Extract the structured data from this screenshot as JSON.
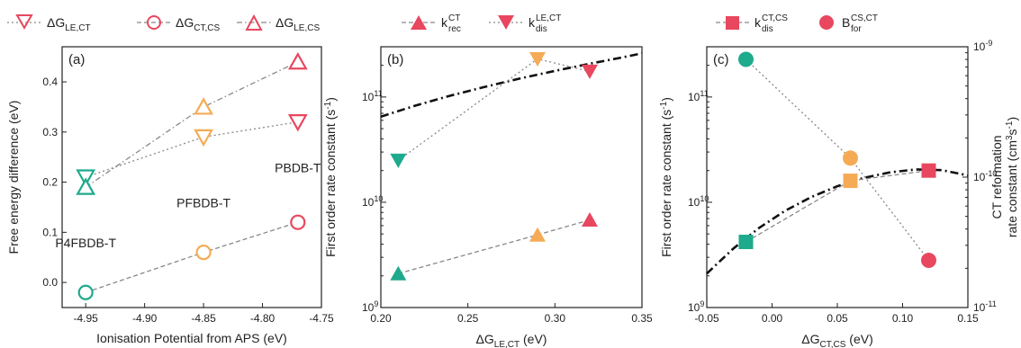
{
  "colors": {
    "red": "#e8475f",
    "orange": "#f5ab55",
    "teal": "#1eaa8c",
    "dark": "#222222",
    "gray": "#888888"
  },
  "chart_data": [
    {
      "type": "scatter",
      "panel": "(a)",
      "xlabel": "Ionisation Potential from APS (eV)",
      "ylabel": "Free energy difference  (eV)",
      "xlim": [
        -4.97,
        -4.75
      ],
      "ylim": [
        -0.05,
        0.47
      ],
      "xticks": [
        -4.95,
        -4.9,
        -4.85,
        -4.8,
        -4.75
      ],
      "xtick_labels": [
        "-4.95",
        "-4.90",
        "-4.85",
        "-4.80",
        "-4.75"
      ],
      "yticks": [
        0.0,
        0.1,
        0.2,
        0.3,
        0.4
      ],
      "ytick_labels": [
        "0.0",
        "0.1",
        "0.2",
        "0.3",
        "0.4"
      ],
      "legend": {
        "dG_LE_CT": {
          "main": "ΔG",
          "sub": "LE,CT"
        },
        "dG_CT_CS": {
          "main": "ΔG",
          "sub": "CT,CS"
        },
        "dG_LE_CS": {
          "main": "ΔG",
          "sub": "LE,CS"
        }
      },
      "series": [
        {
          "key": "dG_LE_CT",
          "marker": "triangle-down",
          "filled": false,
          "line": "dotted",
          "x": [
            -4.95,
            -4.85,
            -4.77
          ],
          "y": [
            0.21,
            0.29,
            0.32
          ],
          "colors": [
            "#1eaa8c",
            "#f5ab55",
            "#e8475f"
          ]
        },
        {
          "key": "dG_CT_CS",
          "marker": "circle",
          "filled": false,
          "line": "dashed",
          "x": [
            -4.95,
            -4.85,
            -4.77
          ],
          "y": [
            -0.02,
            0.06,
            0.12
          ],
          "colors": [
            "#1eaa8c",
            "#f5ab55",
            "#e8475f"
          ]
        },
        {
          "key": "dG_LE_CS",
          "marker": "triangle-up",
          "filled": false,
          "line": "dashdot",
          "x": [
            -4.95,
            -4.85,
            -4.77
          ],
          "y": [
            0.19,
            0.35,
            0.44
          ],
          "colors": [
            "#1eaa8c",
            "#f5ab55",
            "#e8475f"
          ]
        }
      ],
      "materials": [
        {
          "label": "P4FBDB-T",
          "x": -4.95,
          "y": 0.07
        },
        {
          "label": "PFBDB-T",
          "x": -4.85,
          "y": 0.15
        },
        {
          "label": "PBDB-T",
          "x": -4.77,
          "y": 0.22
        }
      ]
    },
    {
      "type": "scatter",
      "panel": "(b)",
      "xlabel": {
        "main": "ΔG",
        "sub": "LE,CT",
        "unit": " (eV)"
      },
      "ylabel": {
        "main": "First order rate constant (s",
        "sup": "-1",
        "end": ")"
      },
      "xlim": [
        0.2,
        0.35
      ],
      "ylim_log": [
        1000000000.0,
        300000000000.0
      ],
      "yscale": "log",
      "xticks": [
        0.2,
        0.25,
        0.3,
        0.35
      ],
      "xtick_labels": [
        "0.20",
        "0.25",
        "0.30",
        "0.35"
      ],
      "ytick_labels": {
        "e9": "10",
        "e9_exp": "9",
        "e10": "10",
        "e10_exp": "10",
        "e11": "10",
        "e11_exp": "11"
      },
      "legend": {
        "k_rec": {
          "main": "k",
          "sup": "CT",
          "sub": "rec"
        },
        "k_dis": {
          "main": "k",
          "sup": "LE,CT",
          "sub": "dis"
        }
      },
      "series": [
        {
          "key": "k_rec",
          "marker": "triangle-up",
          "filled": true,
          "line": "dashed",
          "x": [
            0.21,
            0.29,
            0.32
          ],
          "y": [
            2100000000.0,
            4900000000.0,
            6800000000.0
          ],
          "colors": [
            "#1eaa8c",
            "#f5ab55",
            "#e8475f"
          ]
        },
        {
          "key": "k_dis",
          "marker": "triangle-down",
          "filled": true,
          "line": "dotted",
          "x": [
            0.21,
            0.29,
            0.32
          ],
          "y": [
            25000000000.0,
            230000000000.0,
            175000000000.0
          ],
          "colors": [
            "#1eaa8c",
            "#f5ab55",
            "#e8475f"
          ]
        }
      ],
      "fit": {
        "x": [
          0.2,
          0.22,
          0.24,
          0.26,
          0.28,
          0.3,
          0.32,
          0.34,
          0.35
        ],
        "y": [
          65000000000.0,
          83000000000.0,
          103000000000.0,
          125000000000.0,
          150000000000.0,
          177000000000.0,
          207000000000.0,
          240000000000.0,
          260000000000.0
        ]
      }
    },
    {
      "type": "scatter",
      "panel": "(c)",
      "xlabel": {
        "main": "ΔG",
        "sub": "CT,CS",
        "unit": " (eV)"
      },
      "ylabel": {
        "main": "First order rate constant (s",
        "sup": "-1",
        "end": ")"
      },
      "ylabel_right": {
        "line1": "CT reformation",
        "line2_main": "rate constant (cm",
        "sup": "3",
        "mid": "s",
        "sup2": "-1",
        "end": ")"
      },
      "xlim": [
        -0.05,
        0.15
      ],
      "ylim_log": [
        1000000000.0,
        300000000000.0
      ],
      "y2lim_log": [
        1e-11,
        1e-09
      ],
      "yscale": "log",
      "xticks": [
        -0.05,
        0.0,
        0.05,
        0.1,
        0.15
      ],
      "xtick_labels": [
        "-0.05",
        "0.00",
        "0.05",
        "0.10",
        "0.15"
      ],
      "ytick_labels": {
        "e9": "10",
        "e9_exp": "9",
        "e10": "10",
        "e10_exp": "10",
        "e11": "10",
        "e11_exp": "11"
      },
      "y2tick_labels": {
        "a": "10",
        "a_exp": "-9",
        "b": "10",
        "b_exp": "-10",
        "c": "10",
        "c_exp": "-11"
      },
      "legend": {
        "k_dis": {
          "main": "k",
          "sup": "CT,CS",
          "sub": "dis"
        },
        "B_for": {
          "main": "B",
          "sup": "CS,CT",
          "sub": "for"
        }
      },
      "series": [
        {
          "key": "k_dis",
          "marker": "square",
          "filled": true,
          "line": "dashed",
          "axis": "left",
          "x": [
            -0.02,
            0.06,
            0.12
          ],
          "y": [
            4200000000.0,
            16000000000.0,
            20000000000.0
          ],
          "colors": [
            "#1eaa8c",
            "#f5ab55",
            "#e8475f"
          ]
        },
        {
          "key": "B_for",
          "marker": "circle",
          "filled": true,
          "line": "dotted",
          "axis": "right",
          "x": [
            -0.02,
            0.06,
            0.12
          ],
          "y": [
            8e-10,
            1.4e-10,
            2.3e-11
          ],
          "colors": [
            "#1eaa8c",
            "#f5ab55",
            "#e8475f"
          ]
        }
      ],
      "fit": {
        "x": [
          -0.05,
          -0.03,
          -0.01,
          0.01,
          0.03,
          0.05,
          0.07,
          0.09,
          0.11,
          0.13,
          0.15
        ],
        "y": [
          2100000000.0,
          3600000000.0,
          5700000000.0,
          8300000000.0,
          11200000000.0,
          14200000000.0,
          17000000000.0,
          19200000000.0,
          20500000000.0,
          20200000000.0,
          18000000000.0
        ]
      }
    }
  ]
}
